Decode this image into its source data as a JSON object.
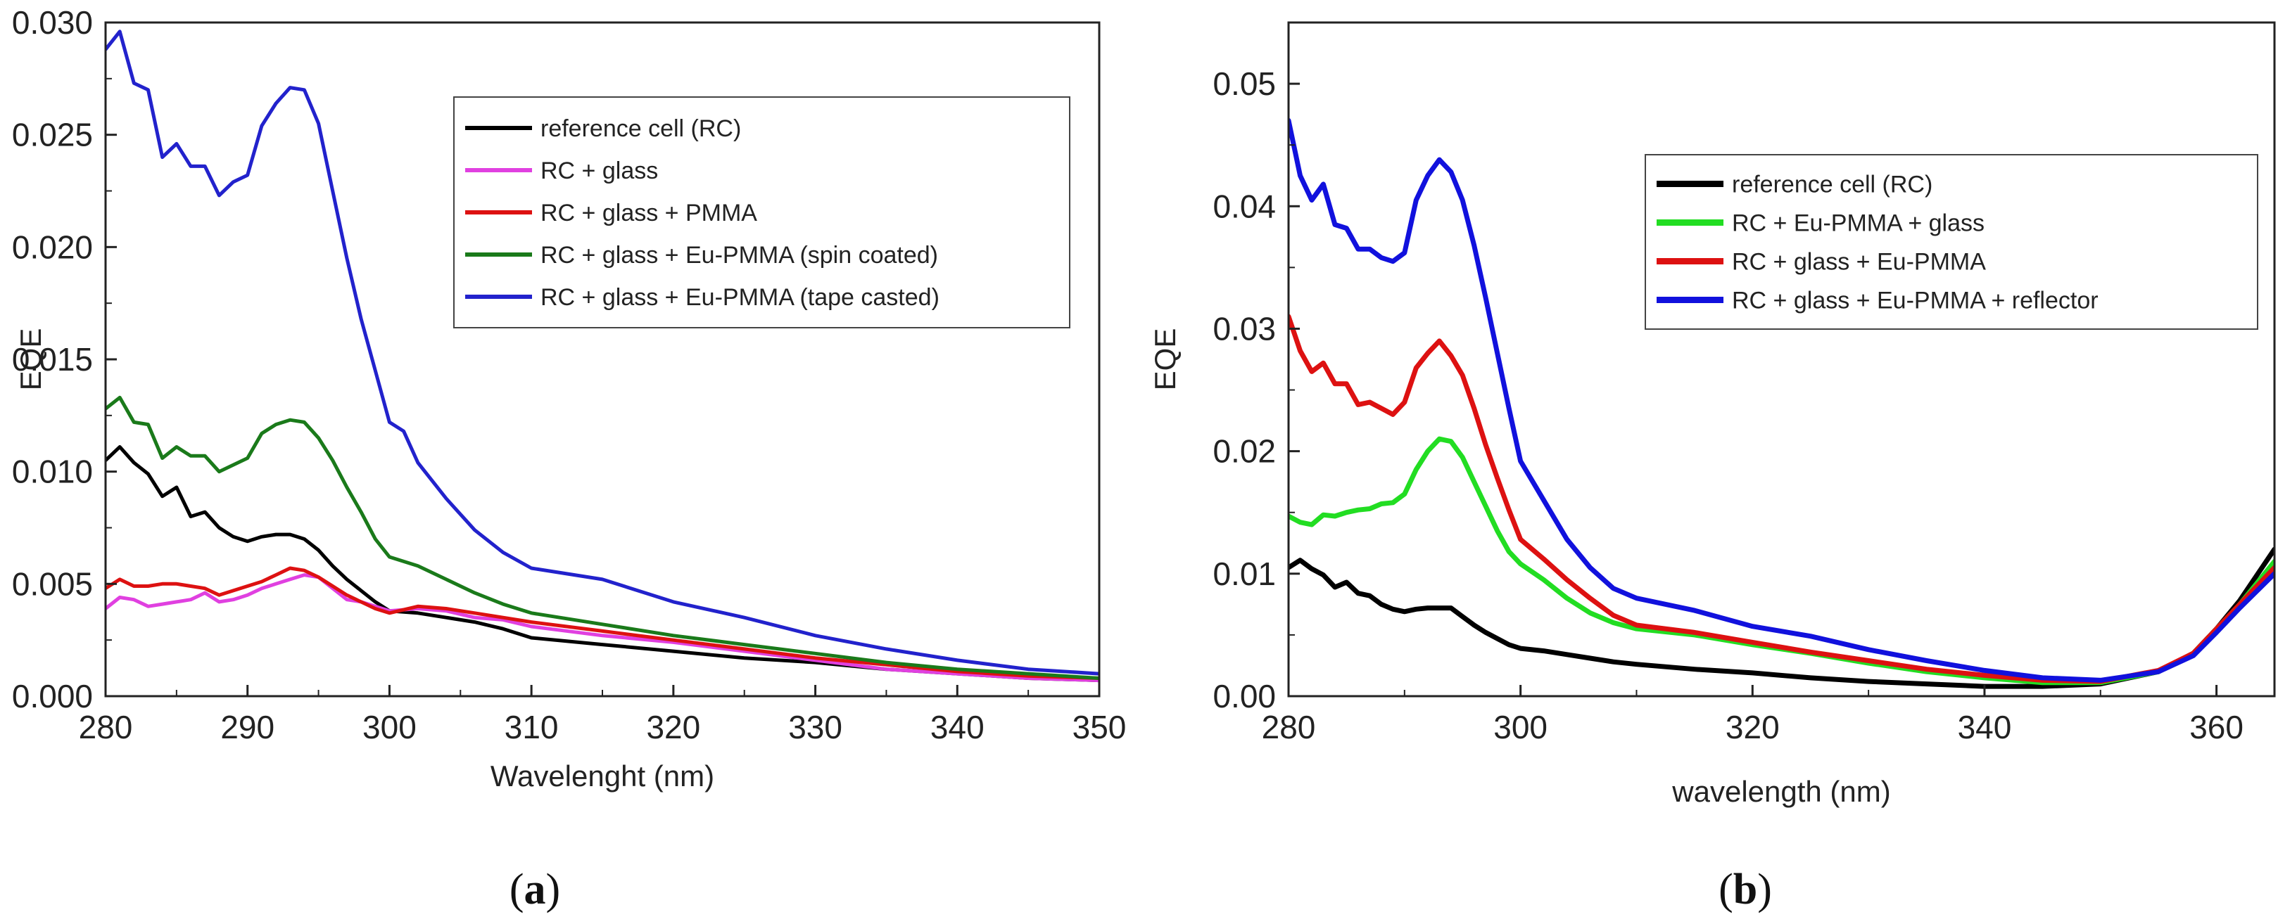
{
  "chart_data": [
    {
      "type": "line",
      "panel_label": "a",
      "xlabel": "Wavelenght (nm)",
      "ylabel": "EQE",
      "xlim": [
        280,
        350
      ],
      "ylim": [
        0,
        0.03
      ],
      "xticks": [
        280,
        290,
        300,
        310,
        320,
        330,
        340,
        350
      ],
      "xtick_labels": [
        "280",
        "290",
        "300",
        "310",
        "320",
        "330",
        "340",
        "350"
      ],
      "yticks": [
        0,
        0.005,
        0.01,
        0.015,
        0.02,
        0.025,
        0.03
      ],
      "ytick_labels": [
        "0.000",
        "0.005",
        "0.010",
        "0.015",
        "0.020",
        "0.025",
        "0.030"
      ],
      "legend_position": "top-right",
      "series": [
        {
          "name": "reference cell (RC)",
          "color": "#000000",
          "x": [
            280,
            281,
            282,
            283,
            284,
            285,
            286,
            287,
            288,
            289,
            290,
            291,
            292,
            293,
            294,
            295,
            296,
            297,
            298,
            299,
            300,
            302,
            304,
            306,
            308,
            310,
            315,
            320,
            325,
            330,
            335,
            340,
            345,
            350
          ],
          "y": [
            0.0105,
            0.0111,
            0.0104,
            0.0099,
            0.0089,
            0.0093,
            0.008,
            0.0082,
            0.0075,
            0.0071,
            0.0069,
            0.0071,
            0.0072,
            0.0072,
            0.007,
            0.0065,
            0.0058,
            0.0052,
            0.0047,
            0.0042,
            0.0038,
            0.0037,
            0.0035,
            0.0033,
            0.003,
            0.0026,
            0.0023,
            0.002,
            0.0017,
            0.0015,
            0.0012,
            0.001,
            0.0008,
            0.0007
          ]
        },
        {
          "name": "RC + glass",
          "color": "#e040e0",
          "x": [
            280,
            281,
            282,
            283,
            284,
            285,
            286,
            287,
            288,
            289,
            290,
            291,
            292,
            293,
            294,
            295,
            296,
            297,
            298,
            299,
            300,
            302,
            304,
            306,
            308,
            310,
            315,
            320,
            325,
            330,
            335,
            340,
            345,
            350
          ],
          "y": [
            0.0039,
            0.0044,
            0.0043,
            0.004,
            0.0041,
            0.0042,
            0.0043,
            0.0046,
            0.0042,
            0.0043,
            0.0045,
            0.0048,
            0.005,
            0.0052,
            0.0054,
            0.0053,
            0.0048,
            0.0043,
            0.0042,
            0.004,
            0.0038,
            0.0039,
            0.0038,
            0.0035,
            0.0034,
            0.0031,
            0.0027,
            0.0024,
            0.002,
            0.0016,
            0.0012,
            0.001,
            0.0008,
            0.0007
          ]
        },
        {
          "name": "RC + glass + PMMA",
          "color": "#dd1111",
          "x": [
            280,
            281,
            282,
            283,
            284,
            285,
            286,
            287,
            288,
            289,
            290,
            291,
            292,
            293,
            294,
            295,
            296,
            297,
            298,
            299,
            300,
            302,
            304,
            306,
            308,
            310,
            315,
            320,
            325,
            330,
            335,
            340,
            345,
            350
          ],
          "y": [
            0.0048,
            0.0052,
            0.0049,
            0.0049,
            0.005,
            0.005,
            0.0049,
            0.0048,
            0.0045,
            0.0047,
            0.0049,
            0.0051,
            0.0054,
            0.0057,
            0.0056,
            0.0053,
            0.0049,
            0.0045,
            0.0042,
            0.0039,
            0.0037,
            0.004,
            0.0039,
            0.0037,
            0.0035,
            0.0033,
            0.0029,
            0.0025,
            0.0021,
            0.0017,
            0.0014,
            0.0011,
            0.0009,
            0.0008
          ]
        },
        {
          "name": "RC + glass + Eu-PMMA (spin coated)",
          "color": "#1a7a1a",
          "x": [
            280,
            281,
            282,
            283,
            284,
            285,
            286,
            287,
            288,
            289,
            290,
            291,
            292,
            293,
            294,
            295,
            296,
            297,
            298,
            299,
            300,
            302,
            304,
            306,
            308,
            310,
            315,
            320,
            325,
            330,
            335,
            340,
            345,
            350
          ],
          "y": [
            0.0128,
            0.0133,
            0.0122,
            0.0121,
            0.0106,
            0.0111,
            0.0107,
            0.0107,
            0.01,
            0.0103,
            0.0106,
            0.0117,
            0.0121,
            0.0123,
            0.0122,
            0.0115,
            0.0105,
            0.0093,
            0.0082,
            0.007,
            0.0062,
            0.0058,
            0.0052,
            0.0046,
            0.0041,
            0.0037,
            0.0032,
            0.0027,
            0.0023,
            0.0019,
            0.0015,
            0.0012,
            0.001,
            0.0008
          ]
        },
        {
          "name": "RC + glass + Eu-PMMA (tape casted)",
          "color": "#2222cc",
          "x": [
            280,
            281,
            282,
            283,
            284,
            285,
            286,
            287,
            288,
            289,
            290,
            291,
            292,
            293,
            294,
            295,
            296,
            297,
            298,
            299,
            300,
            301,
            302,
            304,
            306,
            308,
            310,
            315,
            320,
            325,
            330,
            335,
            340,
            345,
            350
          ],
          "y": [
            0.0288,
            0.0296,
            0.0273,
            0.027,
            0.024,
            0.0246,
            0.0236,
            0.0236,
            0.0223,
            0.0229,
            0.0232,
            0.0254,
            0.0264,
            0.0271,
            0.027,
            0.0255,
            0.0225,
            0.0195,
            0.0168,
            0.0145,
            0.0122,
            0.0118,
            0.0104,
            0.0088,
            0.0074,
            0.0064,
            0.0057,
            0.0052,
            0.0042,
            0.0035,
            0.0027,
            0.0021,
            0.0016,
            0.0012,
            0.001
          ]
        }
      ]
    },
    {
      "type": "line",
      "panel_label": "b",
      "xlabel": "wavelength (nm)",
      "ylabel": "EQE",
      "xlim": [
        280,
        365
      ],
      "ylim": [
        0,
        0.055
      ],
      "xticks": [
        280,
        300,
        320,
        340,
        360
      ],
      "xtick_labels": [
        "280",
        "300",
        "320",
        "340",
        "360"
      ],
      "yticks": [
        0,
        0.01,
        0.02,
        0.03,
        0.04,
        0.05
      ],
      "ytick_labels": [
        "0.00",
        "0.01",
        "0.02",
        "0.03",
        "0.04",
        "0.05"
      ],
      "legend_position": "top-right",
      "series": [
        {
          "name": "reference cell (RC)",
          "color": "#000000",
          "x": [
            280,
            281,
            282,
            283,
            284,
            285,
            286,
            287,
            288,
            289,
            290,
            291,
            292,
            293,
            294,
            295,
            296,
            297,
            298,
            299,
            300,
            302,
            304,
            306,
            308,
            310,
            315,
            320,
            325,
            330,
            335,
            340,
            345,
            350,
            355,
            358,
            360,
            362,
            365
          ],
          "y": [
            0.0105,
            0.0111,
            0.0104,
            0.0099,
            0.0089,
            0.0093,
            0.0084,
            0.0082,
            0.0075,
            0.0071,
            0.0069,
            0.0071,
            0.0072,
            0.0072,
            0.0072,
            0.0065,
            0.0058,
            0.0052,
            0.0047,
            0.0042,
            0.0039,
            0.0037,
            0.0034,
            0.0031,
            0.0028,
            0.0026,
            0.0022,
            0.0019,
            0.0015,
            0.0012,
            0.001,
            0.0008,
            0.0008,
            0.001,
            0.002,
            0.0035,
            0.0055,
            0.0078,
            0.012
          ]
        },
        {
          "name": "RC + Eu-PMMA + glass",
          "color": "#22dd22",
          "x": [
            280,
            281,
            282,
            283,
            284,
            285,
            286,
            287,
            288,
            289,
            290,
            291,
            292,
            293,
            294,
            295,
            296,
            297,
            298,
            299,
            300,
            302,
            304,
            306,
            308,
            310,
            315,
            320,
            325,
            330,
            335,
            340,
            345,
            350,
            355,
            358,
            360,
            362,
            365
          ],
          "y": [
            0.0147,
            0.0142,
            0.014,
            0.0148,
            0.0147,
            0.015,
            0.0152,
            0.0153,
            0.0157,
            0.0158,
            0.0165,
            0.0185,
            0.02,
            0.021,
            0.0208,
            0.0195,
            0.0175,
            0.0155,
            0.0135,
            0.0118,
            0.0108,
            0.0095,
            0.008,
            0.0068,
            0.006,
            0.0055,
            0.005,
            0.0042,
            0.0035,
            0.0027,
            0.002,
            0.0015,
            0.0011,
            0.0011,
            0.002,
            0.0035,
            0.0055,
            0.0075,
            0.011
          ]
        },
        {
          "name": "RC + glass + Eu-PMMA",
          "color": "#dd1111",
          "x": [
            280,
            281,
            282,
            283,
            284,
            285,
            286,
            287,
            288,
            289,
            290,
            291,
            292,
            293,
            294,
            295,
            296,
            297,
            298,
            299,
            300,
            302,
            304,
            306,
            308,
            310,
            315,
            320,
            325,
            330,
            335,
            340,
            345,
            350,
            355,
            358,
            360,
            362,
            365
          ],
          "y": [
            0.031,
            0.0282,
            0.0265,
            0.0272,
            0.0255,
            0.0255,
            0.0238,
            0.024,
            0.0235,
            0.023,
            0.024,
            0.0268,
            0.028,
            0.029,
            0.0278,
            0.0262,
            0.0235,
            0.0205,
            0.0178,
            0.0152,
            0.0128,
            0.0112,
            0.0095,
            0.008,
            0.0066,
            0.0058,
            0.0052,
            0.0044,
            0.0036,
            0.0029,
            0.0022,
            0.0017,
            0.0013,
            0.0012,
            0.0021,
            0.0035,
            0.0055,
            0.0075,
            0.0105
          ]
        },
        {
          "name": "RC + glass + Eu-PMMA + reflector",
          "color": "#1111dd",
          "x": [
            280,
            281,
            282,
            283,
            284,
            285,
            286,
            287,
            288,
            289,
            290,
            291,
            292,
            293,
            294,
            295,
            296,
            297,
            298,
            299,
            300,
            302,
            304,
            306,
            308,
            310,
            315,
            320,
            325,
            330,
            335,
            340,
            345,
            350,
            355,
            358,
            360,
            362,
            365
          ],
          "y": [
            0.047,
            0.0425,
            0.0405,
            0.0418,
            0.0385,
            0.0382,
            0.0365,
            0.0365,
            0.0358,
            0.0355,
            0.0362,
            0.0405,
            0.0425,
            0.0438,
            0.0428,
            0.0405,
            0.0368,
            0.0325,
            0.028,
            0.0235,
            0.0192,
            0.016,
            0.0128,
            0.0105,
            0.0088,
            0.008,
            0.007,
            0.0057,
            0.0049,
            0.0038,
            0.0029,
            0.0021,
            0.0015,
            0.0013,
            0.002,
            0.0033,
            0.0052,
            0.0072,
            0.01
          ]
        }
      ]
    }
  ]
}
